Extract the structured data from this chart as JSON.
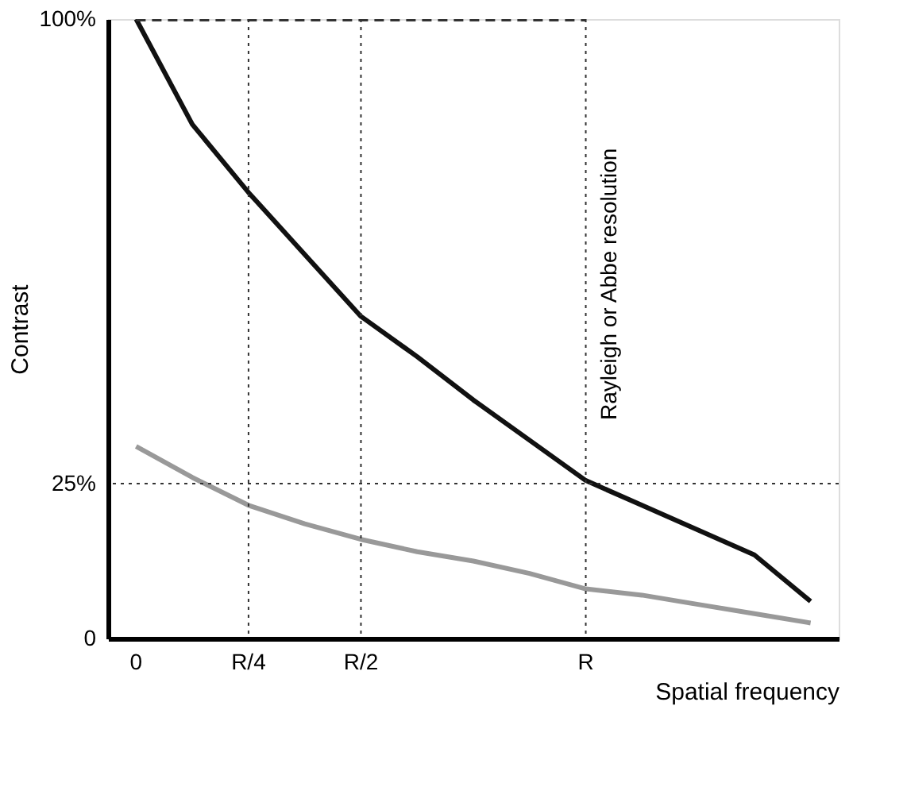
{
  "chart_data": {
    "type": "line",
    "xlabel": "Spatial frequency",
    "ylabel": "Contrast",
    "categories": [
      "0",
      null,
      "R/4",
      null,
      "R/2",
      null,
      null,
      null,
      "R",
      null,
      null,
      null,
      null
    ],
    "ylim": [
      0,
      100
    ],
    "yticks": [
      0,
      {
        "value": 25,
        "label": "25%"
      },
      {
        "value": 100,
        "label": "100%"
      }
    ],
    "grid": false,
    "marker": "none",
    "series": [
      {
        "color": "#111111",
        "line_style": "solid",
        "values": [
          100,
          83,
          72,
          62,
          52,
          45.5,
          38.5,
          32,
          25.5,
          21.5,
          17.5,
          13.5,
          6
        ]
      },
      {
        "color": "#999999",
        "line_style": "solid",
        "values": [
          31,
          26,
          21.5,
          18.5,
          16,
          14,
          12.5,
          10.5,
          8,
          7,
          5.5,
          4,
          2.5
        ]
      },
      {
        "color": "#333333",
        "line_style": "dashed",
        "values": [
          100,
          100,
          100,
          100,
          100,
          100,
          100,
          100,
          100,
          null,
          null,
          null,
          null
        ]
      }
    ],
    "ref_lines": [
      {
        "axis": "x",
        "value": "R/4",
        "line_style": "dotted",
        "color": "#333333"
      },
      {
        "axis": "x",
        "value": "R/2",
        "line_style": "dotted",
        "color": "#333333"
      },
      {
        "axis": "x",
        "value": "R",
        "line_style": "dotted",
        "color": "#333333"
      },
      {
        "axis": "y",
        "value": 25,
        "line_style": "dotted",
        "color": "#333333"
      }
    ],
    "annotations": [
      {
        "text": "Rayleigh or Abbe resolution",
        "x": "R",
        "y": 25
      }
    ]
  }
}
